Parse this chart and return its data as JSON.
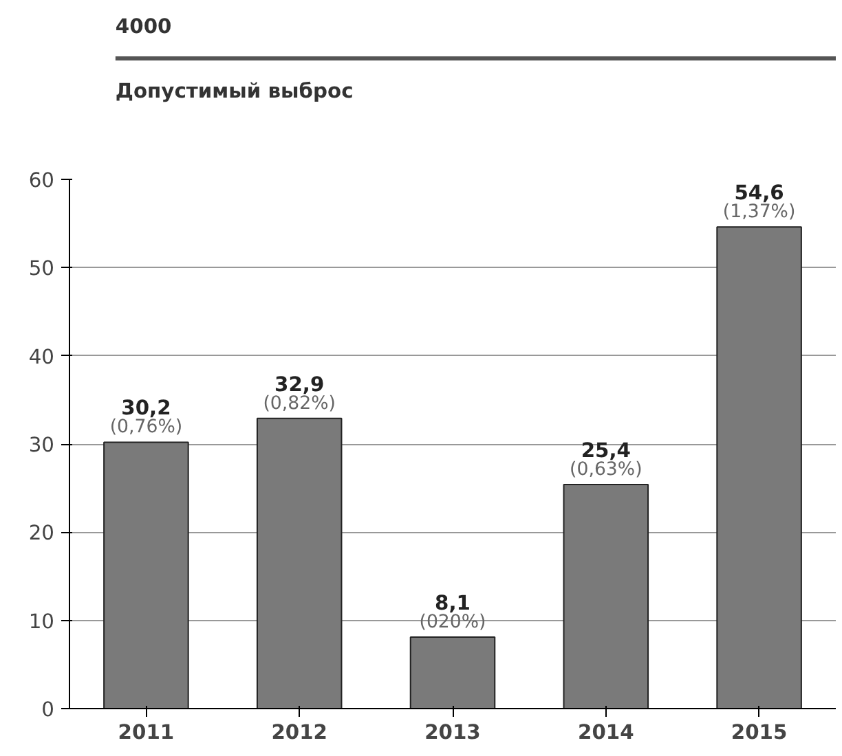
{
  "chart_data": {
    "type": "bar",
    "categories": [
      "2011",
      "2012",
      "2013",
      "2014",
      "2015"
    ],
    "values": [
      30.2,
      32.9,
      8.1,
      25.4,
      54.6
    ],
    "value_labels": [
      "30,2",
      "32,9",
      "8,1",
      "25,4",
      "54,6"
    ],
    "color": "#7a7a7a",
    "ylim": [
      0,
      60
    ],
    "yticks": [
      0,
      10,
      20,
      30,
      40,
      50,
      60
    ],
    "grid": "y",
    "annotations": [
      "4000",
      "Допустимый выброс",
      {
        "text": "(0,76%)",
        "x": "2011",
        "y": 30.2
      },
      {
        "text": "(0,82%)",
        "x": "2012",
        "y": 32.9
      },
      {
        "text": "(020%)",
        "x": "2013",
        "y": 8.1
      },
      {
        "text": "(0,63%)",
        "x": "2014",
        "y": 25.4
      },
      {
        "text": "(1,37%)",
        "x": "2015",
        "y": 54.6
      }
    ]
  }
}
